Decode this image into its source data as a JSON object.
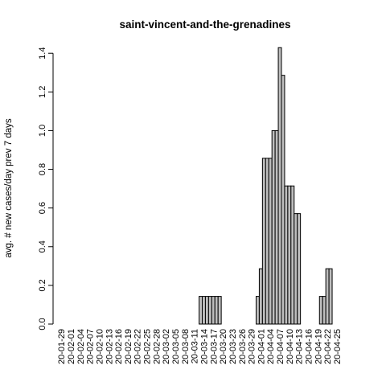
{
  "chart_data": {
    "type": "bar",
    "title": "saint-vincent-and-the-grenadines",
    "xlabel": "",
    "ylabel": "avg. # new cases/day prev  7  days",
    "ylim": [
      0,
      1.43
    ],
    "yticks": [
      0.0,
      0.2,
      0.4,
      0.6,
      0.8,
      1.0,
      1.2,
      1.4
    ],
    "ytick_labels": [
      "0.0",
      "0.2",
      "0.4",
      "0.6",
      "0.8",
      "1.0",
      "1.2",
      "1.4"
    ],
    "first_date": "2020-01-29",
    "last_date": "2020-04-25",
    "xtick_labels": [
      "20-01-29",
      "20-02-01",
      "20-02-04",
      "20-02-07",
      "20-02-10",
      "20-02-13",
      "20-02-16",
      "20-02-19",
      "20-02-22",
      "20-02-25",
      "20-02-28",
      "20-03-02",
      "20-03-05",
      "20-03-08",
      "20-03-11",
      "20-03-14",
      "20-03-17",
      "20-03-20",
      "20-03-23",
      "20-03-26",
      "20-03-29",
      "20-04-01",
      "20-04-04",
      "20-04-07",
      "20-04-10",
      "20-04-13",
      "20-04-16",
      "20-04-19",
      "20-04-22",
      "20-04-25"
    ],
    "nonzero_values": [
      {
        "date": "2020-03-13",
        "value": 0.143
      },
      {
        "date": "2020-03-14",
        "value": 0.143
      },
      {
        "date": "2020-03-15",
        "value": 0.143
      },
      {
        "date": "2020-03-16",
        "value": 0.143
      },
      {
        "date": "2020-03-17",
        "value": 0.143
      },
      {
        "date": "2020-03-18",
        "value": 0.143
      },
      {
        "date": "2020-03-19",
        "value": 0.143
      },
      {
        "date": "2020-03-31",
        "value": 0.143
      },
      {
        "date": "2020-04-01",
        "value": 0.286
      },
      {
        "date": "2020-04-02",
        "value": 0.857
      },
      {
        "date": "2020-04-03",
        "value": 0.857
      },
      {
        "date": "2020-04-04",
        "value": 0.857
      },
      {
        "date": "2020-04-05",
        "value": 1.0
      },
      {
        "date": "2020-04-06",
        "value": 1.0
      },
      {
        "date": "2020-04-07",
        "value": 1.429
      },
      {
        "date": "2020-04-08",
        "value": 1.286
      },
      {
        "date": "2020-04-09",
        "value": 0.714
      },
      {
        "date": "2020-04-10",
        "value": 0.714
      },
      {
        "date": "2020-04-11",
        "value": 0.714
      },
      {
        "date": "2020-04-12",
        "value": 0.571
      },
      {
        "date": "2020-04-13",
        "value": 0.571
      },
      {
        "date": "2020-04-20",
        "value": 0.143
      },
      {
        "date": "2020-04-21",
        "value": 0.143
      },
      {
        "date": "2020-04-22",
        "value": 0.286
      },
      {
        "date": "2020-04-23",
        "value": 0.286
      }
    ],
    "grid": false,
    "legend": "none"
  }
}
